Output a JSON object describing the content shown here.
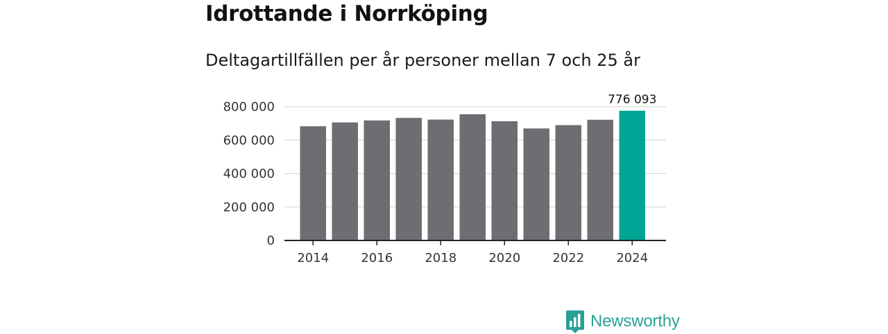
{
  "header": {
    "title": "Idrottande i Norrköping",
    "subtitle": "Deltagartillfällen per år personer mellan 7 och 25 år"
  },
  "chart_data": {
    "type": "bar",
    "title": "Idrottande i Norrköping",
    "subtitle": "Deltagartillfällen per år personer mellan 7 och 25 år",
    "xlabel": "",
    "ylabel": "",
    "categories": [
      "2014",
      "2015",
      "2016",
      "2017",
      "2018",
      "2019",
      "2020",
      "2021",
      "2022",
      "2023",
      "2024"
    ],
    "values": [
      683000,
      706000,
      718000,
      733000,
      723000,
      755000,
      713000,
      670000,
      690000,
      722000,
      776093
    ],
    "highlight_index": 10,
    "highlight_label": "776 093",
    "ylim": [
      0,
      800000
    ],
    "yticks": [
      0,
      200000,
      400000,
      600000,
      800000
    ],
    "ytick_labels": [
      "0",
      "200 000",
      "400 000",
      "600 000",
      "800 000"
    ],
    "xticks": [
      "2014",
      "2016",
      "2018",
      "2020",
      "2022",
      "2024"
    ],
    "grid": true,
    "legend": "none",
    "colors": {
      "bar": "#6e6d72",
      "highlight": "#00a596",
      "grid": "#d9d9d9",
      "axis": "#222222"
    }
  },
  "branding": {
    "name": "Newsworthy",
    "logo_icon": "bar-chart-speech-bubble-icon",
    "color": "#2aa198"
  }
}
